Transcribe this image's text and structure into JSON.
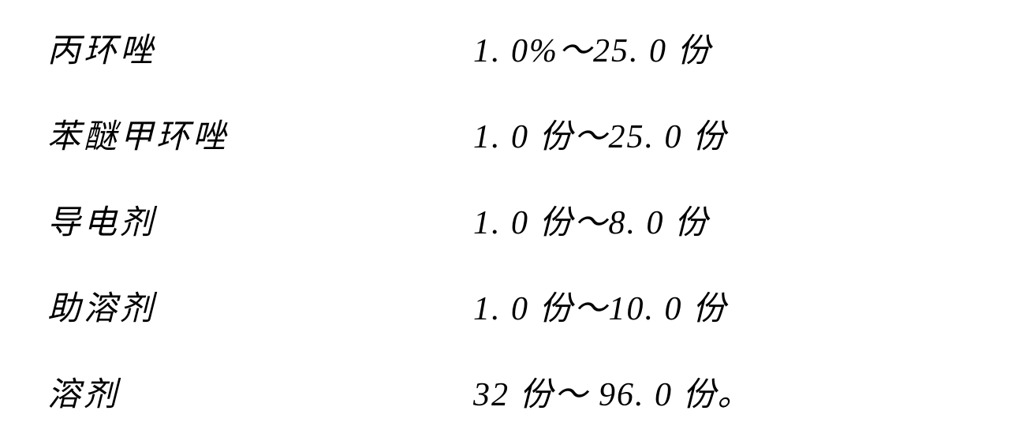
{
  "table": {
    "rows": [
      {
        "label": "丙环唑",
        "value": "1. 0%～25. 0 份"
      },
      {
        "label": "苯醚甲环唑",
        "value": "1. 0 份～25. 0 份"
      },
      {
        "label": "导电剂",
        "value": "1. 0 份～8. 0 份"
      },
      {
        "label": "助溶剂",
        "value": "1. 0 份～10. 0 份"
      },
      {
        "label": "溶剂",
        "value": "32 份～ 96. 0 份。"
      }
    ],
    "font_size": 42,
    "text_color": "#000000",
    "background_color": "#ffffff",
    "row_spacing": 48,
    "label_column_width": 540
  }
}
